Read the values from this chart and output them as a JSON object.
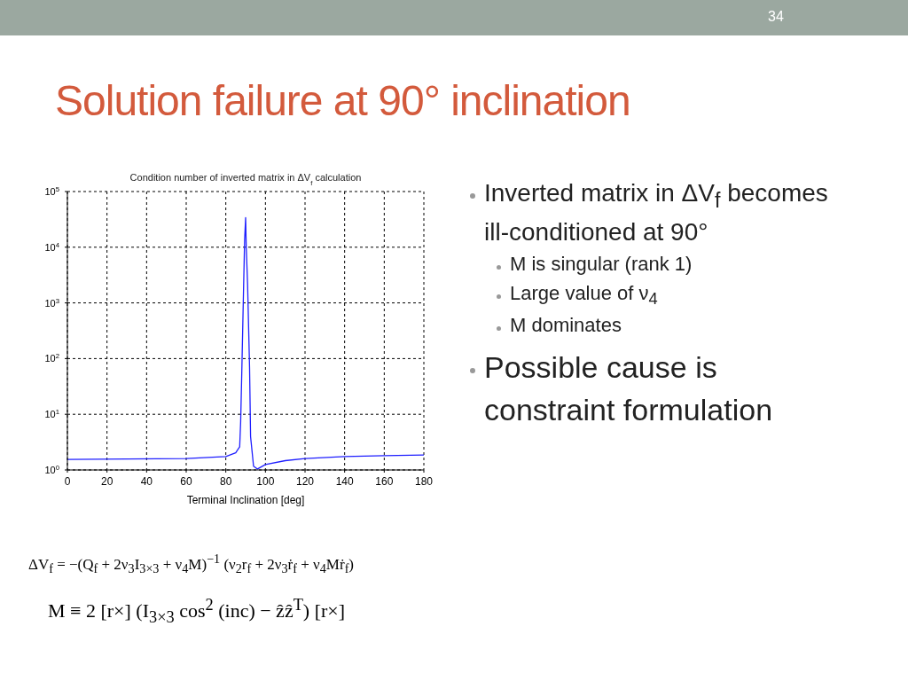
{
  "chart_data": {
    "type": "line",
    "title": "Solution failure at 90° inclination",
    "subtitle": "Condition number of inverted matrix in ΔV$_{f}$ calculation",
    "xlabel": "Terminal Inclination [deg]",
    "annotations": [
      "34",
      "Inverted matrix in ΔV$_{f}$ becomes ill-conditioned at 90°",
      "M is singular (rank 1)",
      "Large value of ν$_{4}$",
      "M dominates",
      "Possible cause is constraint formulation",
      "ΔV$_{f}$ = −(Q$_{f}$ + 2ν$_{3}$I$_{3×3}$ + ν$_{4}$M)$^{−1}$ (ν$_{2}$r$_{f}$ + 2ν$_{3}$ṙ$_{f}$ + ν$_{4}$Mṙ$_{f}$)",
      "M ≡ 2 [r×] (I$_{3×3}$ cos$^{2}$ (inc) − ẑẑ$^{T}$) [r×]"
    ],
    "x": [
      0,
      60,
      80,
      85,
      87,
      87.5,
      88,
      89,
      89.5,
      90,
      90.3,
      91,
      92,
      92.5,
      94,
      96,
      100,
      110,
      120,
      140,
      160,
      180
    ],
    "series": [
      {
        "color": "#1f1fff",
        "values": [
          1.54,
          1.6,
          1.74,
          2.04,
          2.6,
          7.4,
          44,
          2100,
          13500,
          34000,
          10500,
          2100,
          68,
          4,
          1.17,
          1.04,
          1.25,
          1.47,
          1.6,
          1.74,
          1.8,
          1.85
        ]
      }
    ],
    "log": "y",
    "xlim": [
      0,
      180
    ],
    "xticks": [
      0,
      20,
      40,
      60,
      80,
      100,
      120,
      140,
      160,
      180
    ],
    "ylim": [
      1,
      100000
    ],
    "yticks": [
      {
        "value": 1,
        "label": "10$^{0}$"
      },
      {
        "value": 10,
        "label": "10$^{1}$"
      },
      {
        "value": 100,
        "label": "10$^{2}$"
      },
      {
        "value": 1000,
        "label": "10$^{3}$"
      },
      {
        "value": 10000,
        "label": "10$^{4}$"
      },
      {
        "value": 100000,
        "label": "10$^{5}$"
      }
    ],
    "grid": true,
    "marker": "none",
    "line_style": "solid"
  }
}
